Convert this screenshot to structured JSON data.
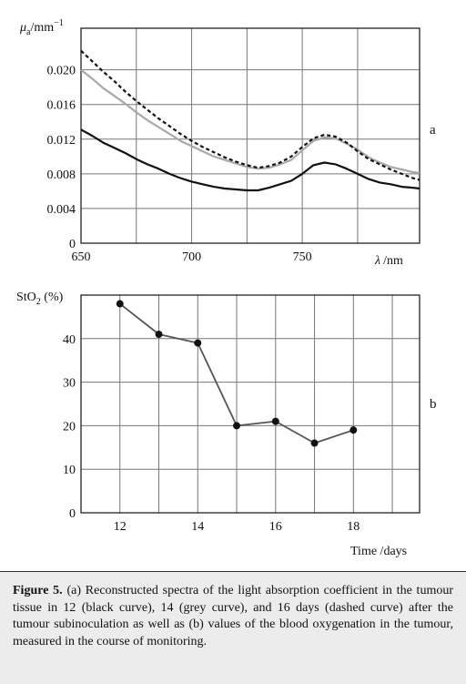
{
  "chart_data": [
    {
      "type": "line",
      "panel_label": "a",
      "ylabel_main": "μ",
      "ylabel_sub": "a",
      "ylabel_unit": "/mm",
      "ylabel_sup": "−1",
      "xlabel_main": "λ",
      "xlabel_unit": "/nm",
      "xlim": [
        650,
        803
      ],
      "ylim": [
        0,
        0.0248
      ],
      "xticks": [
        650,
        700,
        750
      ],
      "xtick_labels": [
        "650",
        "700",
        "750"
      ],
      "yticks": [
        0,
        0.004,
        0.008,
        0.012,
        0.016,
        0.02
      ],
      "ytick_labels": [
        "0",
        "0.004",
        "0.008",
        "0.012",
        "0.016",
        "0.020"
      ],
      "grid": true,
      "x": [
        650,
        655,
        660,
        665,
        670,
        675,
        680,
        685,
        690,
        695,
        700,
        705,
        710,
        715,
        720,
        725,
        730,
        735,
        740,
        745,
        750,
        755,
        760,
        765,
        770,
        775,
        780,
        785,
        790,
        795,
        800,
        803
      ],
      "series": [
        {
          "color": "#111111",
          "style": "solid",
          "values": [
            0.0131,
            0.0124,
            0.0116,
            0.011,
            0.0104,
            0.0097,
            0.0091,
            0.0086,
            0.008,
            0.0075,
            0.0071,
            0.0068,
            0.0065,
            0.0063,
            0.0062,
            0.0061,
            0.0061,
            0.0064,
            0.0068,
            0.0072,
            0.008,
            0.009,
            0.0093,
            0.0091,
            0.0086,
            0.008,
            0.0074,
            0.007,
            0.0068,
            0.0065,
            0.0064,
            0.0063
          ]
        },
        {
          "color": "#a8a8a8",
          "style": "solid",
          "values": [
            0.02,
            0.019,
            0.0179,
            0.017,
            0.0161,
            0.0151,
            0.0142,
            0.0134,
            0.0126,
            0.0118,
            0.0112,
            0.0106,
            0.01,
            0.0096,
            0.0092,
            0.0088,
            0.0086,
            0.0087,
            0.0091,
            0.0096,
            0.0107,
            0.0118,
            0.0122,
            0.0121,
            0.0115,
            0.0108,
            0.0099,
            0.0093,
            0.0088,
            0.0085,
            0.0082,
            0.0081
          ]
        },
        {
          "color": "#111111",
          "style": "dashed",
          "values": [
            0.0222,
            0.021,
            0.0198,
            0.0187,
            0.0175,
            0.0164,
            0.0154,
            0.0144,
            0.0135,
            0.0126,
            0.0118,
            0.0111,
            0.0105,
            0.0099,
            0.0094,
            0.009,
            0.0087,
            0.0089,
            0.0093,
            0.01,
            0.0111,
            0.0121,
            0.0125,
            0.0123,
            0.0116,
            0.0106,
            0.0097,
            0.0091,
            0.0085,
            0.008,
            0.0075,
            0.0073
          ]
        }
      ]
    },
    {
      "type": "line",
      "panel_label": "b",
      "ylabel": "StO",
      "ylabel_sub": "2",
      "ylabel_unit": " (%)",
      "xlabel": "Time /days",
      "xlim": [
        11,
        19.7
      ],
      "ylim": [
        0,
        50
      ],
      "xticks": [
        12,
        14,
        16,
        18
      ],
      "xtick_labels": [
        "12",
        "14",
        "16",
        "18"
      ],
      "yticks": [
        0,
        10,
        20,
        30,
        40
      ],
      "ytick_labels": [
        "0",
        "10",
        "20",
        "30",
        "40"
      ],
      "grid": true,
      "series": [
        {
          "color": "#555555",
          "marker": "circle",
          "x": [
            12,
            13,
            14,
            15,
            16,
            17,
            18
          ],
          "values": [
            48,
            41,
            39,
            20,
            21,
            16,
            19
          ]
        }
      ]
    }
  ],
  "caption": {
    "title": "Figure 5.",
    "text": " (a) Reconstructed spectra of the light absorption coefficient in the tumour tissue in 12 (black curve), 14 (grey curve), and 16 days (dashed curve) after the tumour subinoculation as well as (b) values of the blood oxygenation in the tumour, measured in the course of monitoring."
  }
}
